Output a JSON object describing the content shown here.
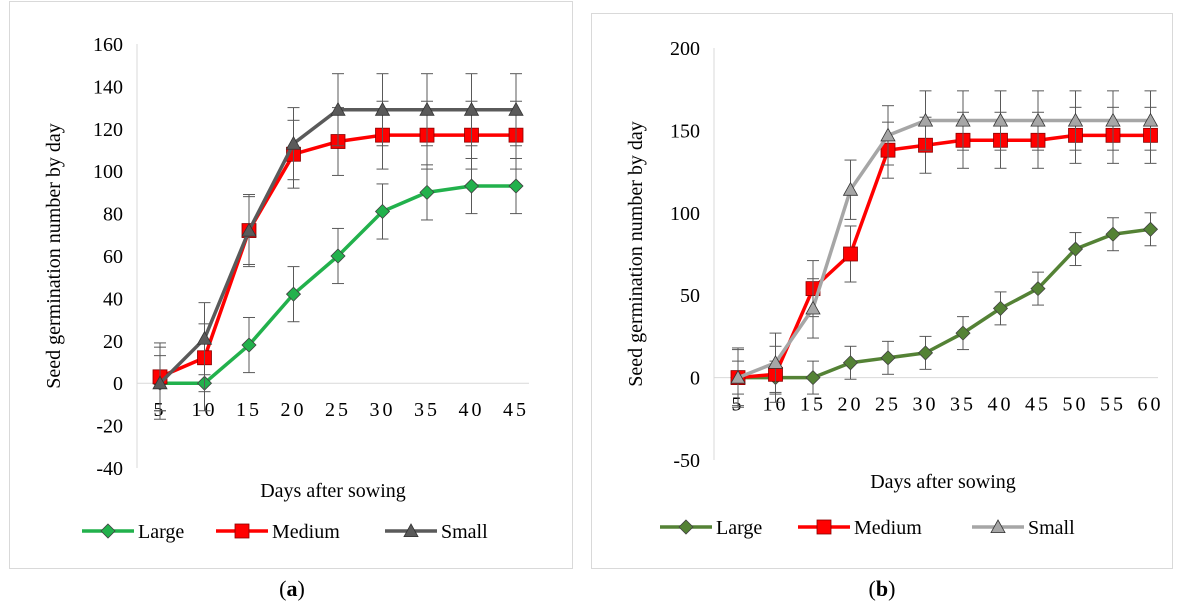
{
  "captions": {
    "a_label": "a",
    "b_label": "b"
  },
  "chart_data": [
    {
      "type": "line",
      "panel": "a",
      "xlabel": "Days after sowing",
      "ylabel": "Seed germination number by day",
      "x": [
        "5",
        "10",
        "15",
        "20",
        "25",
        "30",
        "35",
        "40",
        "45"
      ],
      "ylim": [
        -40,
        160
      ],
      "yticks": [
        -40,
        -20,
        0,
        20,
        40,
        60,
        80,
        100,
        120,
        140,
        160
      ],
      "grid": false,
      "legend": "bottom",
      "series": [
        {
          "name": "Large",
          "color": "#22b14c",
          "marker": "diamond",
          "values": [
            0,
            0,
            18,
            42,
            60,
            81,
            90,
            93,
            93
          ],
          "errors": [
            13,
            13,
            13,
            13,
            13,
            13,
            13,
            13,
            13
          ]
        },
        {
          "name": "Medium",
          "color": "#ff0000",
          "marker": "square",
          "values": [
            3,
            12,
            72,
            108,
            114,
            117,
            117,
            117,
            117
          ],
          "errors": [
            16,
            16,
            16,
            16,
            16,
            16,
            16,
            16,
            16
          ]
        },
        {
          "name": "Small",
          "color": "#5a5a5a",
          "marker": "triangle",
          "values": [
            0,
            21,
            72,
            113,
            129,
            129,
            129,
            129,
            129
          ],
          "errors": [
            17,
            17,
            17,
            17,
            17,
            17,
            17,
            17,
            17
          ]
        }
      ]
    },
    {
      "type": "line",
      "panel": "b",
      "xlabel": "Days after sowing",
      "ylabel": "Seed germination number by day",
      "x": [
        "5",
        "10",
        "15",
        "20",
        "25",
        "30",
        "35",
        "40",
        "45",
        "50",
        "55",
        "60"
      ],
      "ylim": [
        -50,
        200
      ],
      "yticks": [
        -50,
        0,
        50,
        100,
        150,
        200
      ],
      "grid": false,
      "legend": "bottom",
      "series": [
        {
          "name": "Large",
          "color": "#548235",
          "marker": "diamond",
          "values": [
            0,
            0,
            0,
            9,
            12,
            15,
            27,
            42,
            54,
            78,
            87,
            90
          ],
          "errors": [
            10,
            10,
            10,
            10,
            10,
            10,
            10,
            10,
            10,
            10,
            10,
            10
          ]
        },
        {
          "name": "Medium",
          "color": "#ff0000",
          "marker": "square",
          "values": [
            0,
            2,
            54,
            75,
            138,
            141,
            144,
            144,
            144,
            147,
            147,
            147
          ],
          "errors": [
            17,
            17,
            17,
            17,
            17,
            17,
            17,
            17,
            17,
            17,
            17,
            17
          ]
        },
        {
          "name": "Small",
          "color": "#a6a6a6",
          "marker": "triangle",
          "values": [
            0,
            9,
            42,
            114,
            147,
            156,
            156,
            156,
            156,
            156,
            156,
            156
          ],
          "errors": [
            18,
            18,
            18,
            18,
            18,
            18,
            18,
            18,
            18,
            18,
            18,
            18
          ]
        }
      ]
    }
  ]
}
